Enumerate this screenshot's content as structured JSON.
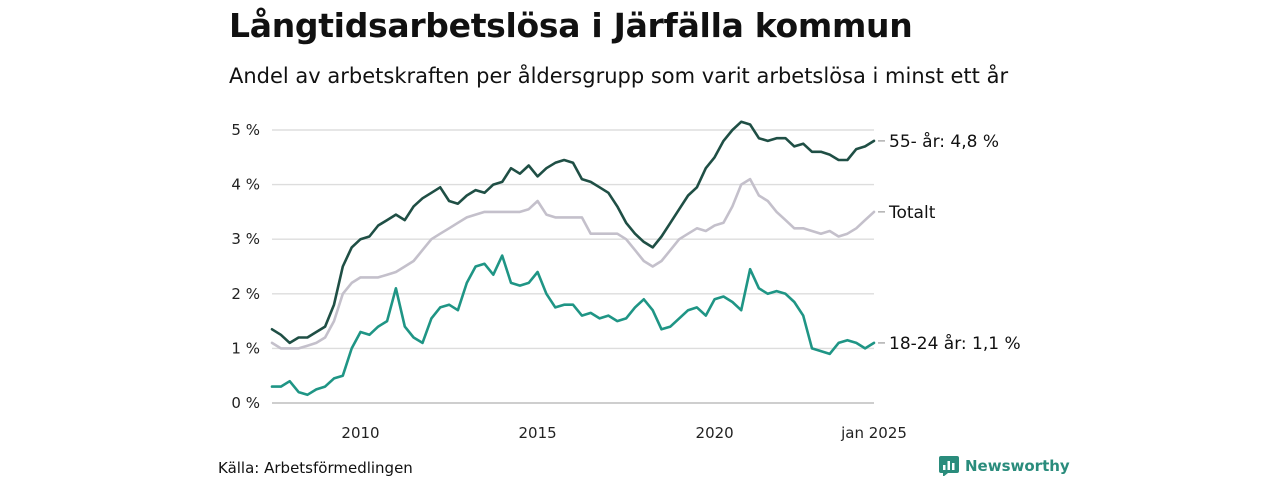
{
  "header": {
    "title": "Långtidsarbetslösa i Järfälla kommun",
    "subtitle": "Andel av arbetskraften per åldersgrupp som varit arbetslösa i minst ett år"
  },
  "footer": {
    "source": "Källa: Arbetsförmedlingen",
    "brand": "Newsworthy",
    "brand_color": "#2a8c7c"
  },
  "chart_data": {
    "type": "line",
    "title": "Långtidsarbetslösa i Järfälla kommun",
    "subtitle": "Andel av arbetskraften per åldersgrupp som varit arbetslösa i minst ett år",
    "xlabel": "",
    "ylabel": "",
    "ylim": [
      0,
      5
    ],
    "xlim": [
      "2008-01",
      "2025-01"
    ],
    "y_ticks": [
      "0 %",
      "1 %",
      "2 %",
      "3 %",
      "4 %",
      "5 %"
    ],
    "x_ticks": [
      "2010",
      "2015",
      "2020",
      "jan 2025"
    ],
    "grid": true,
    "legend": "end-labels",
    "series": [
      {
        "name": "55- år",
        "end_label": "55- år: 4,8 %",
        "color": "#1f4f45",
        "points": [
          [
            "2008-01",
            1.35
          ],
          [
            "2008-04",
            1.25
          ],
          [
            "2008-07",
            1.1
          ],
          [
            "2008-10",
            1.2
          ],
          [
            "2009-01",
            1.2
          ],
          [
            "2009-04",
            1.3
          ],
          [
            "2009-07",
            1.4
          ],
          [
            "2009-10",
            1.8
          ],
          [
            "2010-01",
            2.5
          ],
          [
            "2010-04",
            2.85
          ],
          [
            "2010-07",
            3.0
          ],
          [
            "2010-10",
            3.05
          ],
          [
            "2011-01",
            3.25
          ],
          [
            "2011-04",
            3.35
          ],
          [
            "2011-07",
            3.45
          ],
          [
            "2011-10",
            3.35
          ],
          [
            "2012-01",
            3.6
          ],
          [
            "2012-04",
            3.75
          ],
          [
            "2012-07",
            3.85
          ],
          [
            "2012-10",
            3.95
          ],
          [
            "2013-01",
            3.7
          ],
          [
            "2013-04",
            3.65
          ],
          [
            "2013-07",
            3.8
          ],
          [
            "2013-10",
            3.9
          ],
          [
            "2014-01",
            3.85
          ],
          [
            "2014-04",
            4.0
          ],
          [
            "2014-07",
            4.05
          ],
          [
            "2014-10",
            4.3
          ],
          [
            "2015-01",
            4.2
          ],
          [
            "2015-04",
            4.35
          ],
          [
            "2015-07",
            4.15
          ],
          [
            "2015-10",
            4.3
          ],
          [
            "2016-01",
            4.4
          ],
          [
            "2016-04",
            4.45
          ],
          [
            "2016-07",
            4.4
          ],
          [
            "2016-10",
            4.1
          ],
          [
            "2017-01",
            4.05
          ],
          [
            "2017-04",
            3.95
          ],
          [
            "2017-07",
            3.85
          ],
          [
            "2017-10",
            3.6
          ],
          [
            "2018-01",
            3.3
          ],
          [
            "2018-04",
            3.1
          ],
          [
            "2018-07",
            2.95
          ],
          [
            "2018-10",
            2.85
          ],
          [
            "2019-01",
            3.05
          ],
          [
            "2019-04",
            3.3
          ],
          [
            "2019-07",
            3.55
          ],
          [
            "2019-10",
            3.8
          ],
          [
            "2020-01",
            3.95
          ],
          [
            "2020-04",
            4.3
          ],
          [
            "2020-07",
            4.5
          ],
          [
            "2020-10",
            4.8
          ],
          [
            "2021-01",
            5.0
          ],
          [
            "2021-04",
            5.15
          ],
          [
            "2021-07",
            5.1
          ],
          [
            "2021-10",
            4.85
          ],
          [
            "2022-01",
            4.8
          ],
          [
            "2022-04",
            4.85
          ],
          [
            "2022-07",
            4.85
          ],
          [
            "2022-10",
            4.7
          ],
          [
            "2023-01",
            4.75
          ],
          [
            "2023-04",
            4.6
          ],
          [
            "2023-07",
            4.6
          ],
          [
            "2023-10",
            4.55
          ],
          [
            "2024-01",
            4.45
          ],
          [
            "2024-04",
            4.45
          ],
          [
            "2024-07",
            4.65
          ],
          [
            "2024-10",
            4.7
          ],
          [
            "2025-01",
            4.8
          ]
        ]
      },
      {
        "name": "Totalt",
        "end_label": "Totalt",
        "color": "#c4c0cb",
        "points": [
          [
            "2008-01",
            1.1
          ],
          [
            "2008-04",
            1.0
          ],
          [
            "2008-07",
            1.0
          ],
          [
            "2008-10",
            1.0
          ],
          [
            "2009-01",
            1.05
          ],
          [
            "2009-04",
            1.1
          ],
          [
            "2009-07",
            1.2
          ],
          [
            "2009-10",
            1.5
          ],
          [
            "2010-01",
            2.0
          ],
          [
            "2010-04",
            2.2
          ],
          [
            "2010-07",
            2.3
          ],
          [
            "2010-10",
            2.3
          ],
          [
            "2011-01",
            2.3
          ],
          [
            "2011-04",
            2.35
          ],
          [
            "2011-07",
            2.4
          ],
          [
            "2011-10",
            2.5
          ],
          [
            "2012-01",
            2.6
          ],
          [
            "2012-04",
            2.8
          ],
          [
            "2012-07",
            3.0
          ],
          [
            "2012-10",
            3.1
          ],
          [
            "2013-01",
            3.2
          ],
          [
            "2013-04",
            3.3
          ],
          [
            "2013-07",
            3.4
          ],
          [
            "2013-10",
            3.45
          ],
          [
            "2014-01",
            3.5
          ],
          [
            "2014-04",
            3.5
          ],
          [
            "2014-07",
            3.5
          ],
          [
            "2014-10",
            3.5
          ],
          [
            "2015-01",
            3.5
          ],
          [
            "2015-04",
            3.55
          ],
          [
            "2015-07",
            3.7
          ],
          [
            "2015-10",
            3.45
          ],
          [
            "2016-01",
            3.4
          ],
          [
            "2016-04",
            3.4
          ],
          [
            "2016-07",
            3.4
          ],
          [
            "2016-10",
            3.4
          ],
          [
            "2017-01",
            3.1
          ],
          [
            "2017-04",
            3.1
          ],
          [
            "2017-07",
            3.1
          ],
          [
            "2017-10",
            3.1
          ],
          [
            "2018-01",
            3.0
          ],
          [
            "2018-04",
            2.8
          ],
          [
            "2018-07",
            2.6
          ],
          [
            "2018-10",
            2.5
          ],
          [
            "2019-01",
            2.6
          ],
          [
            "2019-04",
            2.8
          ],
          [
            "2019-07",
            3.0
          ],
          [
            "2019-10",
            3.1
          ],
          [
            "2020-01",
            3.2
          ],
          [
            "2020-04",
            3.15
          ],
          [
            "2020-07",
            3.25
          ],
          [
            "2020-10",
            3.3
          ],
          [
            "2021-01",
            3.6
          ],
          [
            "2021-04",
            4.0
          ],
          [
            "2021-07",
            4.1
          ],
          [
            "2021-10",
            3.8
          ],
          [
            "2022-01",
            3.7
          ],
          [
            "2022-04",
            3.5
          ],
          [
            "2022-07",
            3.35
          ],
          [
            "2022-10",
            3.2
          ],
          [
            "2023-01",
            3.2
          ],
          [
            "2023-04",
            3.15
          ],
          [
            "2023-07",
            3.1
          ],
          [
            "2023-10",
            3.15
          ],
          [
            "2024-01",
            3.05
          ],
          [
            "2024-04",
            3.1
          ],
          [
            "2024-07",
            3.2
          ],
          [
            "2024-10",
            3.35
          ],
          [
            "2025-01",
            3.5
          ]
        ]
      },
      {
        "name": "18-24 år",
        "end_label": "18-24 år: 1,1 %",
        "color": "#1f9585",
        "points": [
          [
            "2008-01",
            0.3
          ],
          [
            "2008-04",
            0.3
          ],
          [
            "2008-07",
            0.4
          ],
          [
            "2008-10",
            0.2
          ],
          [
            "2009-01",
            0.15
          ],
          [
            "2009-04",
            0.25
          ],
          [
            "2009-07",
            0.3
          ],
          [
            "2009-10",
            0.45
          ],
          [
            "2010-01",
            0.5
          ],
          [
            "2010-04",
            1.0
          ],
          [
            "2010-07",
            1.3
          ],
          [
            "2010-10",
            1.25
          ],
          [
            "2011-01",
            1.4
          ],
          [
            "2011-04",
            1.5
          ],
          [
            "2011-07",
            2.1
          ],
          [
            "2011-10",
            1.4
          ],
          [
            "2012-01",
            1.2
          ],
          [
            "2012-04",
            1.1
          ],
          [
            "2012-07",
            1.55
          ],
          [
            "2012-10",
            1.75
          ],
          [
            "2013-01",
            1.8
          ],
          [
            "2013-04",
            1.7
          ],
          [
            "2013-07",
            2.2
          ],
          [
            "2013-10",
            2.5
          ],
          [
            "2014-01",
            2.55
          ],
          [
            "2014-04",
            2.35
          ],
          [
            "2014-07",
            2.7
          ],
          [
            "2014-10",
            2.2
          ],
          [
            "2015-01",
            2.15
          ],
          [
            "2015-04",
            2.2
          ],
          [
            "2015-07",
            2.4
          ],
          [
            "2015-10",
            2.0
          ],
          [
            "2016-01",
            1.75
          ],
          [
            "2016-04",
            1.8
          ],
          [
            "2016-07",
            1.8
          ],
          [
            "2016-10",
            1.6
          ],
          [
            "2017-01",
            1.65
          ],
          [
            "2017-04",
            1.55
          ],
          [
            "2017-07",
            1.6
          ],
          [
            "2017-10",
            1.5
          ],
          [
            "2018-01",
            1.55
          ],
          [
            "2018-04",
            1.75
          ],
          [
            "2018-07",
            1.9
          ],
          [
            "2018-10",
            1.7
          ],
          [
            "2019-01",
            1.35
          ],
          [
            "2019-04",
            1.4
          ],
          [
            "2019-07",
            1.55
          ],
          [
            "2019-10",
            1.7
          ],
          [
            "2020-01",
            1.75
          ],
          [
            "2020-04",
            1.6
          ],
          [
            "2020-07",
            1.9
          ],
          [
            "2020-10",
            1.95
          ],
          [
            "2021-01",
            1.85
          ],
          [
            "2021-04",
            1.7
          ],
          [
            "2021-07",
            2.45
          ],
          [
            "2021-10",
            2.1
          ],
          [
            "2022-01",
            2.0
          ],
          [
            "2022-04",
            2.05
          ],
          [
            "2022-07",
            2.0
          ],
          [
            "2022-10",
            1.85
          ],
          [
            "2023-01",
            1.6
          ],
          [
            "2023-04",
            1.0
          ],
          [
            "2023-07",
            0.95
          ],
          [
            "2023-10",
            0.9
          ],
          [
            "2024-01",
            1.1
          ],
          [
            "2024-04",
            1.15
          ],
          [
            "2024-07",
            1.1
          ],
          [
            "2024-10",
            1.0
          ],
          [
            "2025-01",
            1.1
          ]
        ]
      }
    ]
  }
}
